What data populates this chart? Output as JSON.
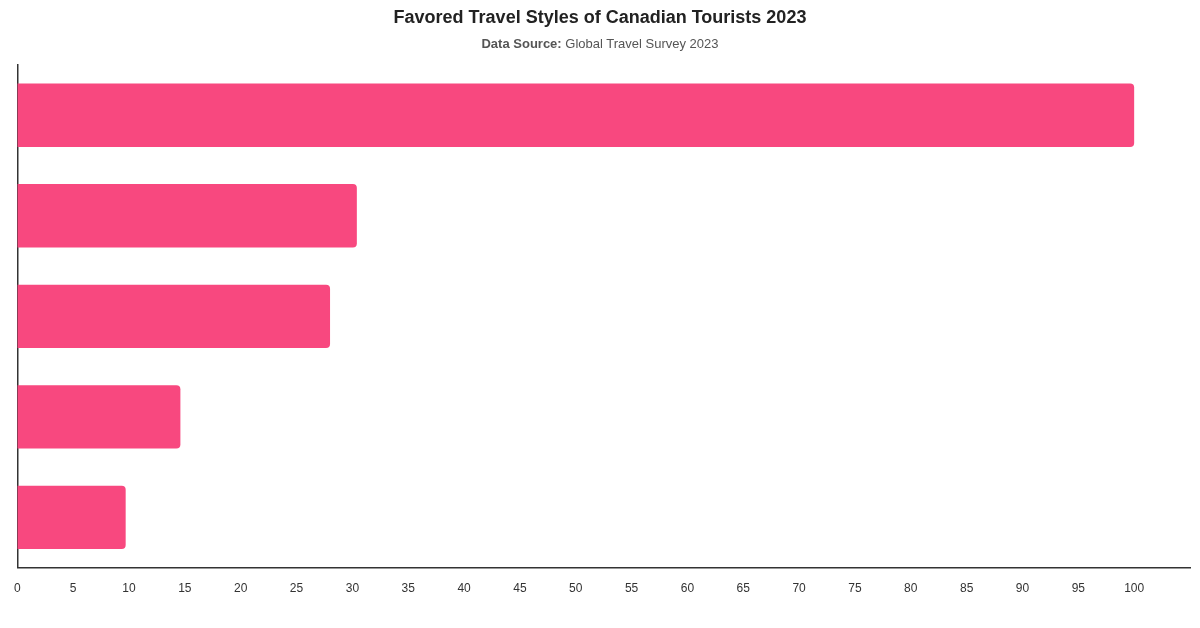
{
  "chart_data": {
    "type": "bar",
    "title": "Favored Travel Styles of Canadian Tourists 2023",
    "subtitle": "Data Source: Global Travel Survey 2023",
    "categories": [
      null,
      null,
      null,
      null,
      null
    ],
    "values": [
      100,
      30.4,
      28,
      14.6,
      9.7
    ],
    "color": "#f8487f",
    "orientation": "horizontal",
    "xlim": [
      0,
      105
    ],
    "xticks": [
      0,
      5,
      10,
      15,
      20,
      25,
      30,
      35,
      40,
      45,
      50,
      55,
      60,
      65,
      70,
      75,
      80,
      85,
      90,
      95,
      100
    ],
    "tick_labels": "x"
  }
}
